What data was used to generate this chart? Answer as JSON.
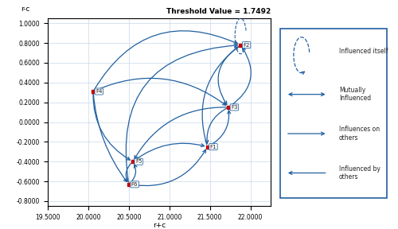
{
  "title": "Threshold Value = 1.7492",
  "xlabel": "r+c",
  "ylabel": "r-c",
  "xlim": [
    19.5,
    22.25
  ],
  "ylim": [
    -0.85,
    1.05
  ],
  "xticks": [
    19.5,
    20.0,
    20.5,
    21.0,
    21.5,
    22.0
  ],
  "yticks": [
    -0.8,
    -0.6,
    -0.4,
    -0.2,
    0.0,
    0.2,
    0.4,
    0.6,
    0.8,
    1.0
  ],
  "xtick_labels": [
    "19.5000",
    "20.0000",
    "20.5000",
    "21.0000",
    "21.5000",
    "22.0000"
  ],
  "ytick_labels": [
    "-0.8000",
    "-0.6000",
    "-0.4000",
    "-0.2000",
    "0.0000",
    "0.2000",
    "0.4000",
    "0.6000",
    "0.8000",
    "1.0000"
  ],
  "points": {
    "F1": [
      21.47,
      -0.25
    ],
    "F2": [
      21.88,
      0.78
    ],
    "F3": [
      21.73,
      0.15
    ],
    "F4": [
      20.06,
      0.31
    ],
    "F5": [
      20.55,
      -0.4
    ],
    "F6": [
      20.5,
      -0.63
    ]
  },
  "point_color": "#CC0000",
  "curve_color": "#2060A0",
  "legend_box_color": "#2060A0",
  "background_color": "#ffffff",
  "grid_color": "#c8d8ea"
}
